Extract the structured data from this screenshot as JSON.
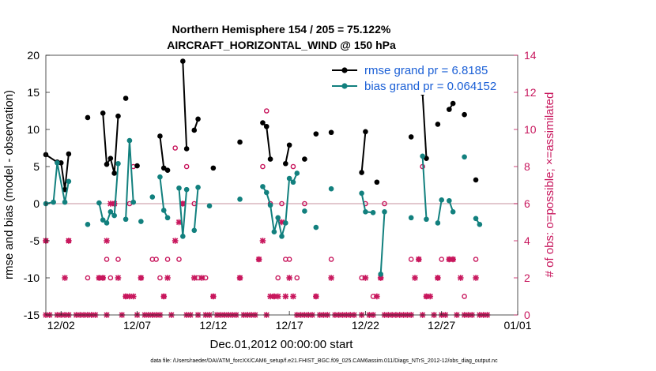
{
  "chart_data": {
    "type": "line",
    "title": "Northern Hemisphere 154 / 205 = 75.122%",
    "subtitle": "AIRCRAFT_HORIZONTAL_WIND @ 150 hPa",
    "xlabel": "Dec.01,2012 00:00:00 start",
    "ylabel": "rmse and bias (model - observation)",
    "y2label": "# of obs: o=possible; ×=assimilated",
    "xlim": [
      0,
      31
    ],
    "ylim": [
      -15,
      20
    ],
    "y2lim": [
      0,
      14
    ],
    "x_ticks": [
      {
        "value": 1,
        "label": "12/02"
      },
      {
        "value": 6,
        "label": "12/07"
      },
      {
        "value": 11,
        "label": "12/12"
      },
      {
        "value": 16,
        "label": "12/17"
      },
      {
        "value": 21,
        "label": "12/22"
      },
      {
        "value": 26,
        "label": "12/27"
      },
      {
        "value": 31,
        "label": "01/01"
      }
    ],
    "y_ticks": [
      -15,
      -10,
      -5,
      0,
      5,
      10,
      15,
      20
    ],
    "y2_ticks": [
      0,
      2,
      4,
      6,
      8,
      10,
      12,
      14
    ],
    "legend_position": "top-right",
    "series": [
      {
        "name": "rmse grand pr = 6.8185",
        "color": "#000000",
        "points": [
          [
            0.0,
            6.6
          ],
          [
            0.75,
            5.6
          ],
          [
            1.0,
            5.5
          ],
          [
            1.25,
            1.9
          ],
          [
            1.5,
            6.7
          ],
          [
            null,
            null
          ],
          [
            2.75,
            11.6
          ],
          [
            null,
            null
          ],
          [
            3.75,
            12.2
          ],
          [
            4.0,
            5.3
          ],
          [
            4.25,
            6.1
          ],
          [
            4.5,
            4.1
          ],
          [
            4.75,
            11.8
          ],
          [
            null,
            null
          ],
          [
            5.25,
            14.2
          ],
          [
            null,
            null
          ],
          [
            6.0,
            5.1
          ],
          [
            null,
            null
          ],
          [
            7.5,
            9.1
          ],
          [
            7.75,
            4.8
          ],
          [
            8.0,
            4.5
          ],
          [
            null,
            null
          ],
          [
            9.0,
            19.2
          ],
          [
            9.25,
            7.4
          ],
          [
            null,
            null
          ],
          [
            9.75,
            9.9
          ],
          [
            10.0,
            11.4
          ],
          [
            null,
            null
          ],
          [
            11.0,
            4.8
          ],
          [
            null,
            null
          ],
          [
            12.75,
            8.3
          ],
          [
            null,
            null
          ],
          [
            14.25,
            10.9
          ],
          [
            14.5,
            10.4
          ],
          [
            14.75,
            6.0
          ],
          [
            null,
            null
          ],
          [
            15.75,
            5.4
          ],
          [
            16.0,
            7.9
          ],
          [
            null,
            null
          ],
          [
            17.0,
            6.0
          ],
          [
            null,
            null
          ],
          [
            17.75,
            9.4
          ],
          [
            null,
            null
          ],
          [
            18.75,
            9.6
          ],
          [
            null,
            null
          ],
          [
            20.75,
            4.2
          ],
          [
            21.0,
            9.7
          ],
          [
            null,
            null
          ],
          [
            21.75,
            2.9
          ],
          [
            null,
            null
          ],
          [
            24.0,
            9.0
          ],
          [
            null,
            null
          ],
          [
            24.75,
            14.9
          ],
          [
            25.0,
            6.1
          ],
          [
            null,
            null
          ],
          [
            25.75,
            10.7
          ],
          [
            null,
            null
          ],
          [
            26.5,
            12.7
          ],
          [
            26.75,
            13.5
          ],
          [
            null,
            null
          ],
          [
            27.5,
            12.0
          ],
          [
            null,
            null
          ],
          [
            28.25,
            3.2
          ]
        ]
      },
      {
        "name": "bias grand pr = 0.064152",
        "color": "#12807e",
        "points": [
          [
            0.0,
            0.0
          ],
          [
            0.5,
            0.2
          ],
          [
            0.75,
            5.5
          ],
          [
            1.25,
            0.2
          ],
          [
            1.5,
            3.0
          ],
          [
            null,
            null
          ],
          [
            2.75,
            -2.8
          ],
          [
            null,
            null
          ],
          [
            3.5,
            0.1
          ],
          [
            3.75,
            -2.2
          ],
          [
            4.0,
            -2.6
          ],
          [
            4.25,
            -1.1
          ],
          [
            4.5,
            -1.6
          ],
          [
            4.75,
            5.4
          ],
          [
            null,
            null
          ],
          [
            5.25,
            -2.1
          ],
          [
            5.5,
            8.5
          ],
          [
            5.75,
            0.2
          ],
          [
            null,
            null
          ],
          [
            6.25,
            -2.4
          ],
          [
            null,
            null
          ],
          [
            7.0,
            0.9
          ],
          [
            null,
            null
          ],
          [
            7.5,
            3.6
          ],
          [
            7.75,
            -0.9
          ],
          [
            8.0,
            -1.9
          ],
          [
            null,
            null
          ],
          [
            8.75,
            2.1
          ],
          [
            9.0,
            -4.4
          ],
          [
            9.25,
            1.9
          ],
          [
            null,
            null
          ],
          [
            9.75,
            -3.6
          ],
          [
            10.0,
            2.2
          ],
          [
            null,
            null
          ],
          [
            10.75,
            -0.3
          ],
          [
            null,
            null
          ],
          [
            12.75,
            0.6
          ],
          [
            null,
            null
          ],
          [
            14.25,
            2.3
          ],
          [
            14.5,
            1.5
          ],
          [
            14.75,
            -0.2
          ],
          [
            15.0,
            -3.8
          ],
          [
            15.25,
            -1.9
          ],
          [
            15.5,
            -4.4
          ],
          [
            15.75,
            -2.6
          ],
          [
            16.0,
            3.4
          ],
          [
            16.25,
            2.9
          ],
          [
            16.5,
            4.1
          ],
          [
            null,
            null
          ],
          [
            17.0,
            -1.0
          ],
          [
            null,
            null
          ],
          [
            17.75,
            -3.2
          ],
          [
            null,
            null
          ],
          [
            18.75,
            2.0
          ],
          [
            null,
            null
          ],
          [
            20.75,
            1.4
          ],
          [
            21.0,
            -1.1
          ],
          [
            21.5,
            -1.2
          ],
          [
            null,
            null
          ],
          [
            22.0,
            -9.5
          ],
          [
            22.25,
            -1.1
          ],
          [
            null,
            null
          ],
          [
            24.0,
            -1.9
          ],
          [
            null,
            null
          ],
          [
            24.75,
            6.4
          ],
          [
            25.0,
            -2.1
          ],
          [
            null,
            null
          ],
          [
            25.75,
            -2.6
          ],
          [
            26.0,
            0.5
          ],
          [
            null,
            null
          ],
          [
            26.5,
            0.4
          ],
          [
            26.75,
            -1.1
          ],
          [
            null,
            null
          ],
          [
            27.5,
            6.3
          ],
          [
            null,
            null
          ],
          [
            28.25,
            -2.0
          ],
          [
            28.5,
            -2.8
          ]
        ]
      }
    ],
    "obs_possible": [
      [
        0.0,
        4
      ],
      [
        1.5,
        4
      ],
      [
        2.75,
        2
      ],
      [
        3.5,
        2
      ],
      [
        3.75,
        2
      ],
      [
        4.0,
        3
      ],
      [
        4.25,
        2
      ],
      [
        4.5,
        6
      ],
      [
        4.75,
        3
      ],
      [
        5.25,
        1
      ],
      [
        5.5,
        6
      ],
      [
        5.75,
        8
      ],
      [
        6.25,
        2
      ],
      [
        7.0,
        3
      ],
      [
        7.25,
        3
      ],
      [
        7.5,
        2
      ],
      [
        7.75,
        1
      ],
      [
        8.0,
        3
      ],
      [
        8.5,
        9
      ],
      [
        8.75,
        3
      ],
      [
        9.0,
        6
      ],
      [
        9.25,
        8
      ],
      [
        9.75,
        6
      ],
      [
        10.0,
        2
      ],
      [
        10.5,
        2
      ],
      [
        11.0,
        1
      ],
      [
        12.75,
        2
      ],
      [
        14.0,
        3
      ],
      [
        14.25,
        8
      ],
      [
        14.5,
        11
      ],
      [
        14.75,
        6
      ],
      [
        15.0,
        1
      ],
      [
        15.25,
        2
      ],
      [
        15.5,
        6
      ],
      [
        15.75,
        3
      ],
      [
        16.0,
        3
      ],
      [
        16.25,
        8
      ],
      [
        16.5,
        2
      ],
      [
        17.0,
        6
      ],
      [
        17.75,
        1
      ],
      [
        18.75,
        3
      ],
      [
        20.75,
        2
      ],
      [
        21.0,
        6
      ],
      [
        21.5,
        1
      ],
      [
        22.0,
        2
      ],
      [
        22.25,
        6
      ],
      [
        24.0,
        3
      ],
      [
        24.5,
        3
      ],
      [
        24.75,
        8
      ],
      [
        25.0,
        1
      ],
      [
        25.75,
        2
      ],
      [
        26.0,
        3
      ],
      [
        26.5,
        3
      ],
      [
        26.75,
        3
      ],
      [
        27.5,
        1
      ],
      [
        28.25,
        3
      ]
    ],
    "obs_assimilated": [
      [
        0.0,
        4
      ],
      [
        0.0,
        0
      ],
      [
        0.25,
        0
      ],
      [
        0.75,
        0
      ],
      [
        1.0,
        0
      ],
      [
        1.25,
        0
      ],
      [
        1.25,
        2
      ],
      [
        1.5,
        0
      ],
      [
        1.5,
        4
      ],
      [
        2.0,
        0
      ],
      [
        2.25,
        0
      ],
      [
        2.5,
        0
      ],
      [
        2.75,
        0
      ],
      [
        3.0,
        0
      ],
      [
        3.25,
        0
      ],
      [
        3.5,
        2
      ],
      [
        3.75,
        2
      ],
      [
        4.0,
        0
      ],
      [
        4.0,
        4
      ],
      [
        4.25,
        6
      ],
      [
        4.5,
        6
      ],
      [
        4.75,
        2
      ],
      [
        5.0,
        0
      ],
      [
        5.25,
        1
      ],
      [
        5.5,
        1
      ],
      [
        5.75,
        1
      ],
      [
        6.0,
        0
      ],
      [
        6.25,
        2
      ],
      [
        6.5,
        0
      ],
      [
        6.75,
        0
      ],
      [
        7.0,
        0
      ],
      [
        7.25,
        0
      ],
      [
        7.5,
        0
      ],
      [
        7.75,
        1
      ],
      [
        8.0,
        2
      ],
      [
        8.25,
        0
      ],
      [
        8.5,
        4
      ],
      [
        8.75,
        5
      ],
      [
        9.0,
        6
      ],
      [
        9.25,
        0
      ],
      [
        9.5,
        0
      ],
      [
        9.75,
        2
      ],
      [
        10.0,
        0
      ],
      [
        10.25,
        2
      ],
      [
        10.5,
        0
      ],
      [
        10.75,
        0
      ],
      [
        11.0,
        1
      ],
      [
        11.25,
        0
      ],
      [
        11.5,
        0
      ],
      [
        11.75,
        0
      ],
      [
        12.0,
        0
      ],
      [
        12.25,
        0
      ],
      [
        12.5,
        0
      ],
      [
        12.75,
        2
      ],
      [
        13.0,
        0
      ],
      [
        13.25,
        0
      ],
      [
        13.5,
        0
      ],
      [
        13.75,
        0
      ],
      [
        14.0,
        3
      ],
      [
        14.25,
        4
      ],
      [
        14.5,
        0
      ],
      [
        14.75,
        1
      ],
      [
        15.0,
        1
      ],
      [
        15.25,
        1
      ],
      [
        15.5,
        5
      ],
      [
        15.75,
        1
      ],
      [
        16.0,
        2
      ],
      [
        16.25,
        1
      ],
      [
        16.5,
        0
      ],
      [
        16.75,
        0
      ],
      [
        17.0,
        0
      ],
      [
        17.25,
        0
      ],
      [
        17.5,
        0
      ],
      [
        17.75,
        1
      ],
      [
        18.0,
        0
      ],
      [
        18.25,
        0
      ],
      [
        18.5,
        0
      ],
      [
        18.75,
        2
      ],
      [
        19.0,
        0
      ],
      [
        19.25,
        0
      ],
      [
        19.5,
        0
      ],
      [
        19.75,
        0
      ],
      [
        20.0,
        0
      ],
      [
        20.25,
        0
      ],
      [
        20.75,
        0
      ],
      [
        21.0,
        2
      ],
      [
        21.25,
        0
      ],
      [
        21.5,
        0
      ],
      [
        21.75,
        1
      ],
      [
        22.0,
        2
      ],
      [
        22.25,
        0
      ],
      [
        22.5,
        0
      ],
      [
        22.75,
        0
      ],
      [
        23.0,
        0
      ],
      [
        23.25,
        0
      ],
      [
        23.5,
        0
      ],
      [
        23.75,
        0
      ],
      [
        24.0,
        0
      ],
      [
        24.25,
        2
      ],
      [
        24.5,
        3
      ],
      [
        24.75,
        0
      ],
      [
        25.0,
        1
      ],
      [
        25.25,
        1
      ],
      [
        25.5,
        0
      ],
      [
        25.75,
        2
      ],
      [
        26.0,
        0
      ],
      [
        26.25,
        0
      ],
      [
        26.5,
        3
      ],
      [
        26.75,
        3
      ],
      [
        27.0,
        0
      ],
      [
        27.25,
        2
      ],
      [
        27.5,
        0
      ],
      [
        27.75,
        0
      ],
      [
        28.0,
        0
      ],
      [
        28.25,
        2
      ],
      [
        28.5,
        0
      ],
      [
        28.75,
        0
      ],
      [
        29.0,
        0
      ]
    ]
  },
  "footer": "data file: /Users/raeder/DAI/ATM_forcXX/CAM6_setup/f.e21.FHIST_BGC.f09_025.CAM6assim.011/Diags_NTrS_2012-12/obs_diag_output.nc"
}
